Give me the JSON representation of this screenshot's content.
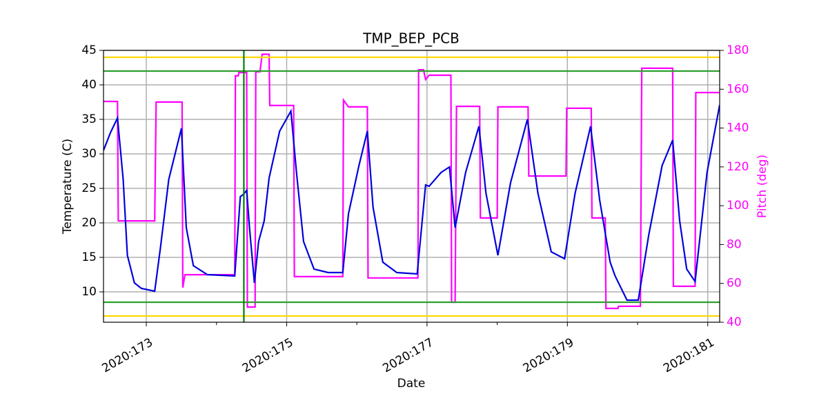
{
  "chart_data": {
    "type": "line",
    "title": "TMP_BEP_PCB",
    "xlabel": "Date",
    "ylabel": "Temperature (C)",
    "y2label": "Pitch (deg)",
    "y2color": "#ff00ff",
    "xlim": [
      172.39,
      181.17
    ],
    "xticks": [
      {
        "value": 173,
        "label": "2020:173"
      },
      {
        "value": 175,
        "label": "2020:175"
      },
      {
        "value": 177,
        "label": "2020:177"
      },
      {
        "value": 179,
        "label": "2020:179"
      },
      {
        "value": 181,
        "label": "2020:181"
      }
    ],
    "xminorticks": [
      174,
      176,
      178,
      180
    ],
    "ylim": [
      5.6,
      45
    ],
    "yticks": [
      10,
      15,
      20,
      25,
      30,
      35,
      40,
      45
    ],
    "y2lim": [
      40,
      180
    ],
    "y2ticks": [
      40,
      60,
      80,
      100,
      120,
      140,
      160,
      180
    ],
    "grid": true,
    "hlines": [
      {
        "value": 44,
        "color": "#ffd700"
      },
      {
        "value": 6.5,
        "color": "#ffd700"
      },
      {
        "value": 42,
        "color": "#2ca02c"
      },
      {
        "value": 8.5,
        "color": "#2ca02c"
      }
    ],
    "vlines": [
      {
        "value": 174.39,
        "color": "#008000"
      }
    ],
    "series": [
      {
        "color": "#ff00ff",
        "axis": "y2",
        "x": [
          172.39,
          172.59,
          172.6,
          173.12,
          173.14,
          173.51,
          173.52,
          173.55,
          174.26,
          174.27,
          174.31,
          174.32,
          174.43,
          174.44,
          174.55,
          174.56,
          174.62,
          174.65,
          174.75,
          174.76,
          175.1,
          175.11,
          175.8,
          175.81,
          175.88,
          175.89,
          176.15,
          176.16,
          176.87,
          176.88,
          176.95,
          176.98,
          177.03,
          177.34,
          177.35,
          177.4,
          177.42,
          177.75,
          177.76,
          178.0,
          178.01,
          178.44,
          178.45,
          178.98,
          178.99,
          179.34,
          179.35,
          179.54,
          179.55,
          179.72,
          179.73,
          180.04,
          180.06,
          180.5,
          180.51,
          180.82,
          180.83,
          181.17
        ],
        "values": [
          153.7,
          153.7,
          92.2,
          92.2,
          153.4,
          153.4,
          57.8,
          64.5,
          64.5,
          166.9,
          166.9,
          168.6,
          168.6,
          47.8,
          47.8,
          169,
          169,
          178,
          178,
          151.6,
          151.6,
          63.5,
          63.5,
          154.4,
          150.9,
          150.9,
          150.9,
          62.8,
          62.8,
          170,
          170,
          165,
          167.2,
          167.2,
          50.3,
          50.3,
          151.2,
          151.2,
          93.7,
          93.7,
          150.9,
          150.9,
          115.3,
          115.3,
          150.2,
          150.2,
          93.7,
          93.7,
          47.1,
          47.1,
          48.2,
          48.2,
          170.8,
          170.8,
          58.5,
          58.5,
          158.3,
          158.3
        ]
      },
      {
        "color": "#0000dd",
        "axis": "y",
        "x": [
          172.39,
          172.49,
          172.59,
          172.67,
          172.73,
          172.83,
          172.93,
          173.12,
          173.2,
          173.32,
          173.5,
          173.57,
          173.67,
          173.87,
          174.26,
          174.34,
          174.38,
          174.43,
          174.47,
          174.54,
          174.6,
          174.68,
          174.75,
          174.9,
          175.06,
          175.14,
          175.24,
          175.39,
          175.59,
          175.8,
          175.88,
          176.03,
          176.15,
          176.23,
          176.37,
          176.57,
          176.86,
          176.98,
          177.03,
          177.2,
          177.32,
          177.4,
          177.55,
          177.74,
          177.84,
          178.01,
          178.19,
          178.43,
          178.58,
          178.77,
          178.96,
          179.11,
          179.33,
          179.46,
          179.61,
          179.68,
          179.85,
          180.01,
          180.16,
          180.35,
          180.5,
          180.6,
          180.7,
          180.82,
          180.99,
          181.17
        ],
        "values": [
          30.5,
          33.1,
          35.2,
          26.3,
          15.3,
          11.3,
          10.5,
          10.1,
          16.3,
          26.3,
          33.7,
          19.3,
          13.8,
          12.5,
          12.3,
          23.8,
          24.1,
          24.7,
          19.3,
          11.3,
          17.3,
          20.3,
          26.5,
          33.3,
          36.2,
          27.3,
          17.3,
          13.3,
          12.8,
          12.8,
          21.3,
          28.3,
          33.3,
          22.3,
          14.3,
          12.8,
          12.6,
          25.5,
          25.3,
          27.3,
          28.1,
          19.3,
          27.3,
          34.0,
          24.3,
          15.3,
          25.8,
          35.0,
          24.3,
          15.8,
          14.8,
          24.3,
          34.0,
          23.3,
          14.3,
          12.3,
          8.8,
          8.8,
          18.3,
          28.3,
          32.0,
          20.3,
          13.3,
          11.5,
          27.3,
          37.1
        ]
      }
    ]
  }
}
